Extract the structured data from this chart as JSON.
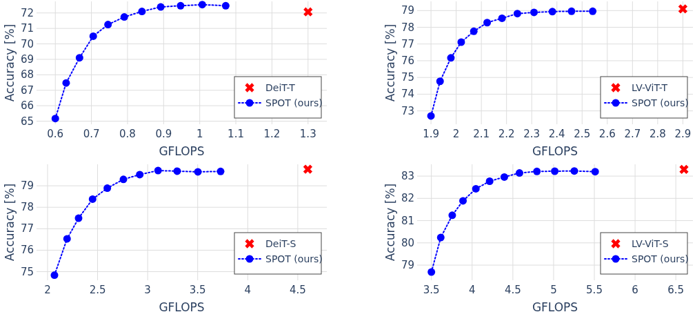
{
  "chart_data": [
    {
      "type": "line",
      "xlabel": "GFLOPS",
      "ylabel": "Accuracy [%]",
      "xlim": [
        0.548,
        1.352
      ],
      "ylim": [
        64.8,
        72.75
      ],
      "xticks": [
        0.6,
        0.7,
        0.8,
        0.9,
        1,
        1.1,
        1.2,
        1.3
      ],
      "yticks": [
        65,
        66,
        67,
        68,
        69,
        70,
        71,
        72
      ],
      "grid": true,
      "legend": "bottom right",
      "series": [
        {
          "name": "DeiT-T",
          "type": "scatter",
          "color": "#ff0000",
          "marker": "cross",
          "x": [
            1.3
          ],
          "values": [
            72.07
          ]
        },
        {
          "name": "SPOT (ours)",
          "type": "line",
          "color": "#0000ff",
          "marker": "circle",
          "line_style": "dotted",
          "x": [
            0.6,
            0.63,
            0.667,
            0.705,
            0.746,
            0.791,
            0.84,
            0.892,
            0.947,
            1.007,
            1.072
          ],
          "values": [
            65.17,
            67.47,
            69.1,
            70.5,
            71.25,
            71.74,
            72.1,
            72.39,
            72.47,
            72.54,
            72.47
          ]
        }
      ]
    },
    {
      "type": "line",
      "xlabel": "GFLOPS",
      "ylabel": "Accuracy [%]",
      "xlim": [
        1.845,
        2.94
      ],
      "ylim": [
        72.2,
        79.55
      ],
      "xticks": [
        1.9,
        2,
        2.1,
        2.2,
        2.3,
        2.4,
        2.5,
        2.6,
        2.7,
        2.8,
        2.9
      ],
      "yticks": [
        73,
        74,
        75,
        76,
        77,
        78,
        79
      ],
      "grid": true,
      "legend": "bottom right",
      "series": [
        {
          "name": "LV-ViT-T",
          "type": "scatter",
          "color": "#ff0000",
          "marker": "cross",
          "x": [
            2.9
          ],
          "values": [
            79.1
          ]
        },
        {
          "name": "SPOT (ours)",
          "type": "line",
          "color": "#0000ff",
          "marker": "circle",
          "line_style": "dotted",
          "x": [
            1.9,
            1.936,
            1.979,
            2.02,
            2.07,
            2.123,
            2.182,
            2.243,
            2.309,
            2.382,
            2.458,
            2.542
          ],
          "values": [
            72.7,
            74.77,
            76.17,
            77.11,
            77.76,
            78.28,
            78.54,
            78.82,
            78.89,
            78.94,
            78.96,
            78.96
          ]
        }
      ]
    },
    {
      "type": "line",
      "xlabel": "GFLOPS",
      "ylabel": "Accuracy [%]",
      "xlim": [
        1.89,
        4.79
      ],
      "ylim": [
        74.6,
        80.0
      ],
      "xticks": [
        2,
        2.5,
        3,
        3.5,
        4,
        4.5
      ],
      "yticks": [
        75,
        76,
        77,
        78,
        79
      ],
      "grid": true,
      "legend": "bottom right",
      "series": [
        {
          "name": "DeiT-S",
          "type": "scatter",
          "color": "#ff0000",
          "marker": "cross",
          "x": [
            4.6
          ],
          "values": [
            79.77
          ]
        },
        {
          "name": "SPOT (ours)",
          "type": "line",
          "color": "#0000ff",
          "marker": "circle",
          "line_style": "dotted",
          "x": [
            2.069,
            2.195,
            2.31,
            2.45,
            2.597,
            2.758,
            2.921,
            3.104,
            3.295,
            3.502,
            3.729
          ],
          "values": [
            74.84,
            76.53,
            77.49,
            78.38,
            78.89,
            79.3,
            79.52,
            79.71,
            79.68,
            79.65,
            79.67
          ]
        }
      ]
    },
    {
      "type": "line",
      "xlabel": "GFLOPS",
      "ylabel": "Accuracy [%]",
      "xlim": [
        3.325,
        6.71
      ],
      "ylim": [
        78.32,
        83.53
      ],
      "xticks": [
        3.5,
        4,
        4.5,
        5,
        5.5,
        6,
        6.5
      ],
      "yticks": [
        79,
        80,
        81,
        82,
        83
      ],
      "grid": true,
      "legend": "bottom right",
      "series": [
        {
          "name": "LV-ViT-S",
          "type": "scatter",
          "color": "#ff0000",
          "marker": "cross",
          "x": [
            6.6
          ],
          "values": [
            83.3
          ]
        },
        {
          "name": "SPOT (ours)",
          "type": "line",
          "color": "#0000ff",
          "marker": "circle",
          "line_style": "dotted",
          "x": [
            3.5,
            3.615,
            3.756,
            3.888,
            4.046,
            4.215,
            4.395,
            4.581,
            4.795,
            5.014,
            5.254,
            5.51
          ],
          "values": [
            78.69,
            80.24,
            81.24,
            81.89,
            82.43,
            82.77,
            82.96,
            83.14,
            83.21,
            83.22,
            83.23,
            83.2
          ]
        }
      ]
    }
  ]
}
